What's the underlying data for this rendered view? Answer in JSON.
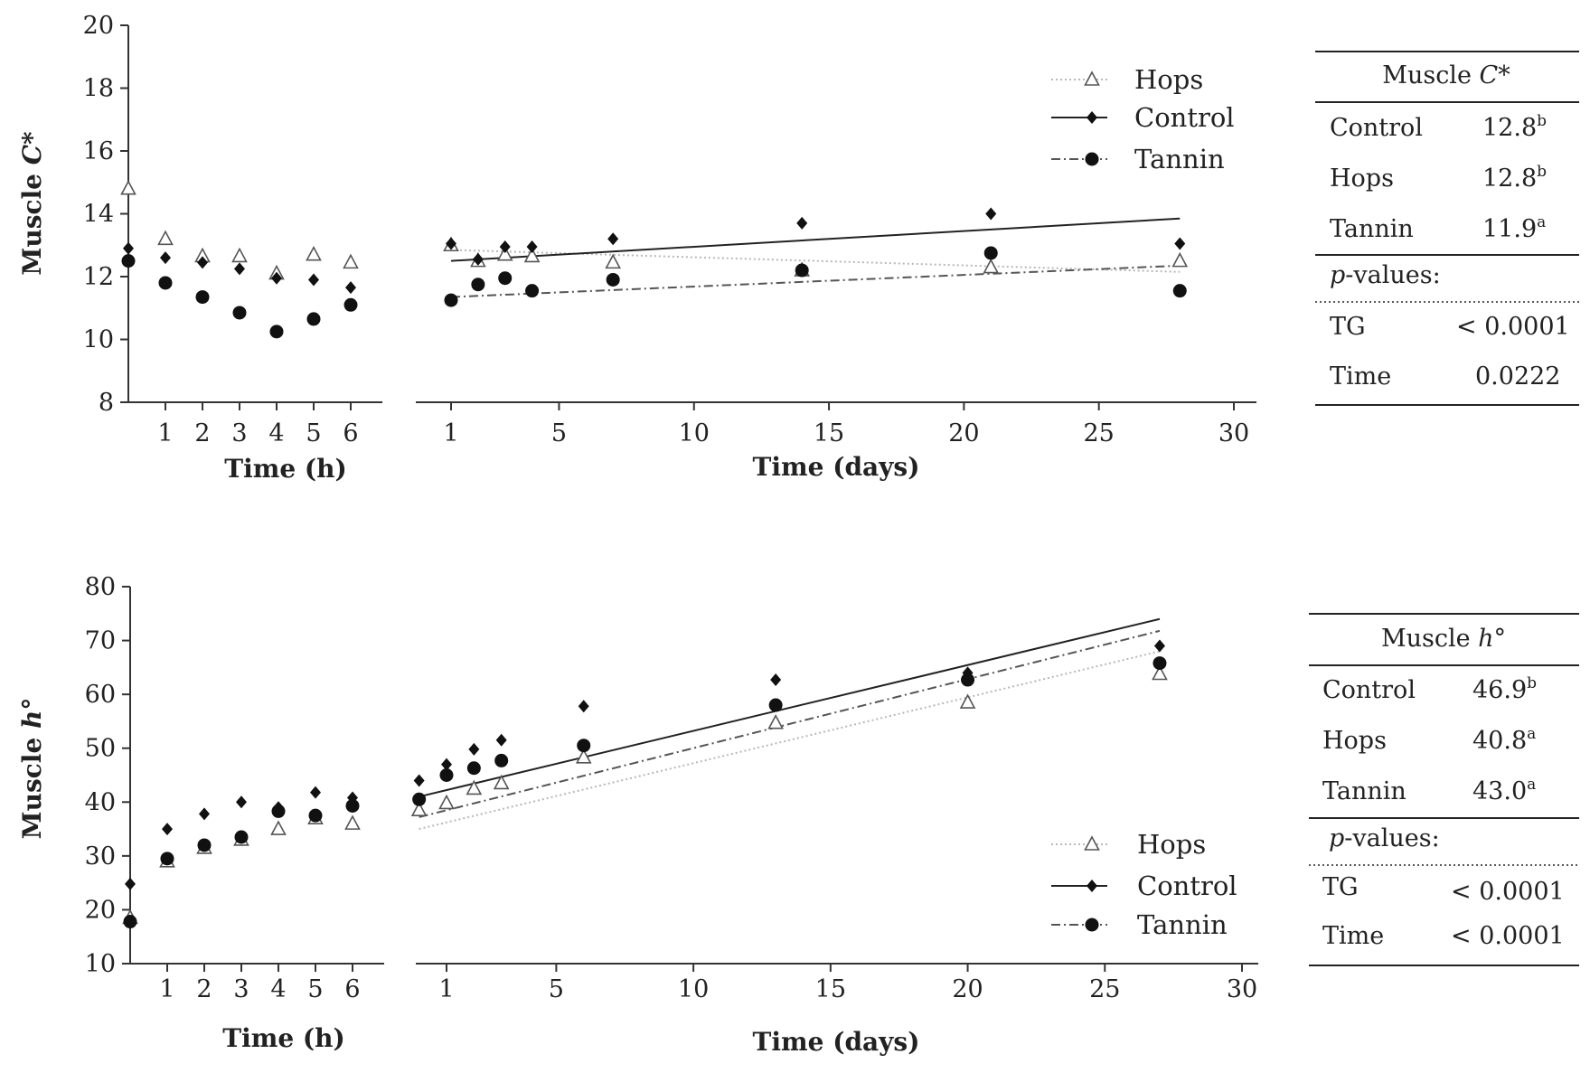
{
  "chart_data": [
    {
      "type": "scatter",
      "title": "",
      "ylabel_prefix": "Muscle ",
      "ylabel_var": "C*",
      "y_ticks": [
        "8",
        "10",
        "12",
        "14",
        "16",
        "18",
        "20"
      ],
      "ylim": [
        8,
        20
      ],
      "panels": [
        {
          "xlabel": "Time (h)",
          "xlim": [
            0,
            6.6
          ],
          "x_ticks": [
            "1",
            "2",
            "3",
            "4",
            "5",
            "6"
          ],
          "series": [
            {
              "name": "Hops",
              "marker": "triangle",
              "x": [
                0,
                1,
                2,
                3,
                4,
                5,
                6
              ],
              "y": [
                14.8,
                13.2,
                12.65,
                12.65,
                12.1,
                12.7,
                12.45
              ]
            },
            {
              "name": "Control",
              "marker": "diamond",
              "x": [
                0,
                1,
                2,
                3,
                4,
                5,
                6
              ],
              "y": [
                12.9,
                12.6,
                12.45,
                12.25,
                11.95,
                11.9,
                11.65
              ]
            },
            {
              "name": "Tannin",
              "marker": "circle",
              "x": [
                0,
                1,
                2,
                3,
                4,
                5,
                6
              ],
              "y": [
                12.5,
                11.8,
                11.35,
                10.85,
                10.25,
                10.65,
                11.1
              ]
            }
          ]
        },
        {
          "xlabel": "Time (days)",
          "xlim": [
            -1,
            30
          ],
          "x_ticks": [
            "1",
            "5",
            "10",
            "15",
            "20",
            "25",
            "30"
          ],
          "series": [
            {
              "name": "Hops",
              "marker": "triangle",
              "x": [
                1,
                2,
                3,
                4,
                7,
                14,
                21,
                28
              ],
              "y": [
                13.0,
                12.5,
                12.7,
                12.65,
                12.45,
                12.2,
                12.3,
                12.5
              ],
              "fit": [
                [
                  1,
                  12.85
                ],
                [
                  28,
                  12.15
                ]
              ]
            },
            {
              "name": "Control",
              "marker": "diamond",
              "x": [
                1,
                2,
                3,
                4,
                7,
                14,
                21,
                28
              ],
              "y": [
                13.05,
                12.55,
                12.95,
                12.95,
                13.2,
                13.7,
                14.0,
                13.05
              ],
              "fit": [
                [
                  1,
                  12.5
                ],
                [
                  28,
                  13.85
                ]
              ]
            },
            {
              "name": "Tannin",
              "marker": "circle",
              "x": [
                1,
                2,
                3,
                4,
                7,
                14,
                21,
                28
              ],
              "y": [
                11.25,
                11.75,
                11.95,
                11.55,
                11.9,
                12.2,
                12.75,
                11.55
              ],
              "fit": [
                [
                  1,
                  11.35
                ],
                [
                  28,
                  12.35
                ]
              ]
            }
          ]
        }
      ],
      "legend": [
        "Hops",
        "Control",
        "Tannin"
      ],
      "table": {
        "title_prefix": "Muscle",
        "title_var": "C*",
        "rows": [
          {
            "label": "Control",
            "value": "12.8",
            "sup": "b"
          },
          {
            "label": "Hops",
            "value": "12.8",
            "sup": "b"
          },
          {
            "label": "Tannin",
            "value": "11.9",
            "sup": "a"
          }
        ],
        "pvalues_label_var": "p",
        "pvalues_label_rest": "-values:",
        "pvalues": [
          {
            "label": "TG",
            "value": "< 0.0001"
          },
          {
            "label": "Time",
            "value": "0.0222"
          }
        ]
      }
    },
    {
      "type": "scatter",
      "title": "",
      "ylabel_prefix": "Muscle ",
      "ylabel_var": "h°",
      "y_ticks": [
        "10",
        "20",
        "30",
        "40",
        "50",
        "60",
        "70",
        "80"
      ],
      "ylim": [
        10,
        80
      ],
      "panels": [
        {
          "xlabel": "Time (h)",
          "xlim": [
            0,
            6.6
          ],
          "x_ticks": [
            "1",
            "2",
            "3",
            "4",
            "5",
            "6"
          ],
          "series": [
            {
              "name": "Hops",
              "marker": "triangle",
              "x": [
                0,
                1,
                2,
                3,
                4,
                5,
                6
              ],
              "y": [
                18.5,
                29.0,
                31.5,
                33.0,
                35.0,
                37.0,
                36.0
              ]
            },
            {
              "name": "Control",
              "marker": "diamond",
              "x": [
                0,
                1,
                2,
                3,
                4,
                5,
                6
              ],
              "y": [
                24.8,
                35.0,
                37.8,
                40.0,
                39.0,
                41.8,
                40.8
              ]
            },
            {
              "name": "Tannin",
              "marker": "circle",
              "x": [
                0,
                1,
                2,
                3,
                4,
                5,
                6
              ],
              "y": [
                17.8,
                29.5,
                32.0,
                33.5,
                38.3,
                37.5,
                39.3
              ]
            }
          ]
        },
        {
          "xlabel": "Time (days)",
          "xlim": [
            -1,
            30
          ],
          "x_ticks": [
            "1",
            "5",
            "10",
            "15",
            "20",
            "25",
            "30"
          ],
          "series": [
            {
              "name": "Hops",
              "marker": "triangle",
              "x": [
                0,
                1,
                2,
                3,
                6,
                13,
                20,
                27
              ],
              "y": [
                38.5,
                39.8,
                42.5,
                43.5,
                48.3,
                54.7,
                58.5,
                63.8
              ],
              "fit": [
                [
                  0,
                  35.0
                ],
                [
                  27,
                  68.0
                ]
              ]
            },
            {
              "name": "Control",
              "marker": "diamond",
              "x": [
                0,
                1,
                2,
                3,
                6,
                13,
                20,
                27
              ],
              "y": [
                44.0,
                47.0,
                49.8,
                51.5,
                57.8,
                62.7,
                64.0,
                69.0
              ],
              "fit": [
                [
                  0,
                  41.0
                ],
                [
                  27,
                  74.0
                ]
              ]
            },
            {
              "name": "Tannin",
              "marker": "circle",
              "x": [
                0,
                1,
                2,
                3,
                6,
                13,
                20,
                27
              ],
              "y": [
                40.5,
                45.0,
                46.3,
                47.7,
                50.5,
                58.0,
                62.7,
                65.8
              ],
              "fit": [
                [
                  0,
                  37.2
                ],
                [
                  27,
                  71.8
                ]
              ]
            }
          ]
        }
      ],
      "legend": [
        "Hops",
        "Control",
        "Tannin"
      ],
      "table": {
        "title_prefix": "Muscle",
        "title_var": "h°",
        "rows": [
          {
            "label": "Control",
            "value": "46.9",
            "sup": "b"
          },
          {
            "label": "Hops",
            "value": "40.8",
            "sup": "a"
          },
          {
            "label": "Tannin",
            "value": "43.0",
            "sup": "a"
          }
        ],
        "pvalues_label_var": "p",
        "pvalues_label_rest": "-values:",
        "pvalues": [
          {
            "label": "TG",
            "value": "< 0.0001"
          },
          {
            "label": "Time",
            "value": "< 0.0001"
          }
        ]
      }
    }
  ]
}
